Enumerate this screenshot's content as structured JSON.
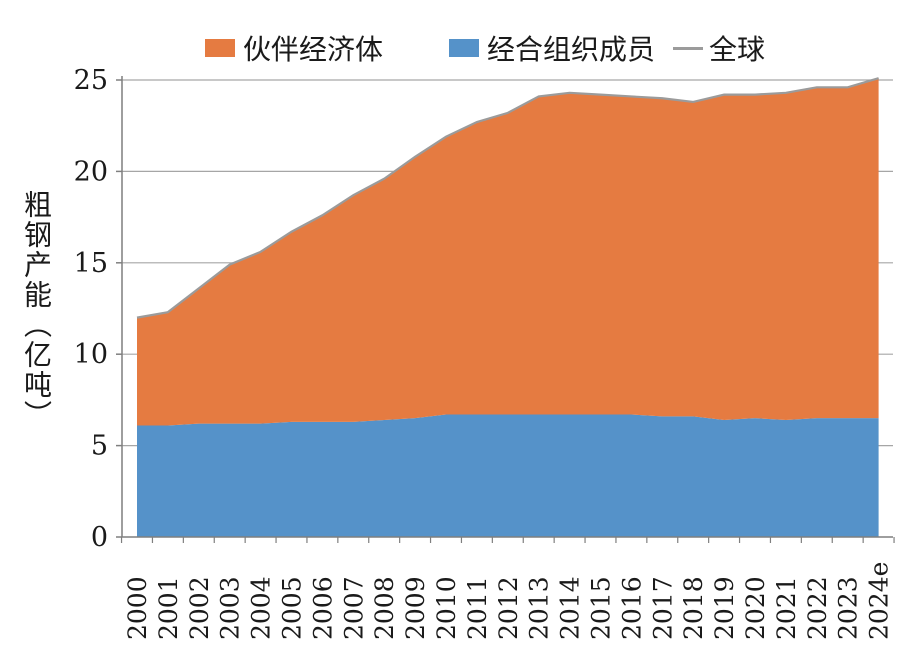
{
  "chart_data": {
    "type": "area",
    "stacked": true,
    "categories": [
      "2000",
      "2001",
      "2002",
      "2003",
      "2004",
      "2005",
      "2006",
      "2007",
      "2008",
      "2009",
      "2010",
      "2011",
      "2012",
      "2013",
      "2014",
      "2015",
      "2016",
      "2017",
      "2018",
      "2019",
      "2020",
      "2021",
      "2022",
      "2023",
      "2024e"
    ],
    "series": [
      {
        "name": "经合组织成员",
        "color": "#5592c9",
        "values": [
          6.1,
          6.1,
          6.2,
          6.2,
          6.2,
          6.3,
          6.3,
          6.3,
          6.4,
          6.5,
          6.7,
          6.7,
          6.7,
          6.7,
          6.7,
          6.7,
          6.7,
          6.6,
          6.6,
          6.4,
          6.5,
          6.4,
          6.5,
          6.5,
          6.5
        ]
      },
      {
        "name": "伙伴经济体",
        "color": "#e57b41",
        "values": [
          5.9,
          6.2,
          7.4,
          8.7,
          9.4,
          10.4,
          11.3,
          12.4,
          13.2,
          14.3,
          15.2,
          16.0,
          16.5,
          17.4,
          17.6,
          17.5,
          17.4,
          17.4,
          17.2,
          17.8,
          17.7,
          17.9,
          18.1,
          18.1,
          18.6
        ]
      }
    ],
    "total": {
      "name": "全球",
      "color": "#9b9b9b",
      "values": [
        12.0,
        12.3,
        13.6,
        14.9,
        15.6,
        16.7,
        17.6,
        18.7,
        19.6,
        20.8,
        21.9,
        22.7,
        23.2,
        24.1,
        24.3,
        24.2,
        24.1,
        24.0,
        23.8,
        24.2,
        24.2,
        24.3,
        24.6,
        24.6,
        25.1
      ]
    },
    "ylabel": "粗钢产能（亿吨）",
    "xlabel": "",
    "ylim": [
      0,
      25
    ],
    "yticks": [
      0,
      5,
      10,
      15,
      20,
      25
    ],
    "grid": true,
    "legend_position": "top"
  },
  "legend": {
    "partner_label": "伙伴经济体",
    "oecd_label": "经合组织成员",
    "global_label": "全球"
  }
}
